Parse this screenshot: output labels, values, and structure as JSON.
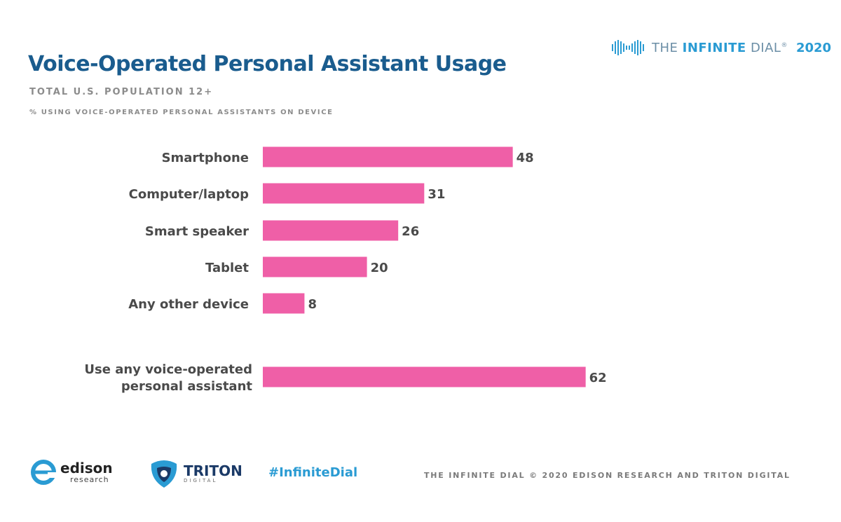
{
  "header": {
    "title": "Voice-Operated Personal Assistant Usage",
    "subtitle": "TOTAL U.S. POPULATION 12+",
    "note": "% USING VOICE-OPERATED PERSONAL ASSISTANTS ON DEVICE"
  },
  "brand": {
    "prefix": "THE ",
    "highlight": "INFINITE",
    "suffix": " DIAL",
    "reg": "®",
    "year": "2020"
  },
  "footer": {
    "edison_name": "edison",
    "edison_sub": "research",
    "triton_name": "TRITON",
    "triton_sub": "DIGITAL",
    "hashtag": "#InfiniteDial",
    "credit": "THE INFINITE DIAL   © 2020 EDISON RESEARCH AND TRITON DIGITAL"
  },
  "colors": {
    "bar": "#ef5fa7",
    "title": "#1a5c8e",
    "accent": "#2a9bd3"
  },
  "chart_data": {
    "type": "bar",
    "orientation": "horizontal",
    "categories": [
      [
        "Smartphone"
      ],
      [
        "Computer/laptop"
      ],
      [
        "Smart speaker"
      ],
      [
        "Tablet"
      ],
      [
        "Any other device"
      ],
      [
        "Use any voice-operated",
        "personal assistant"
      ]
    ],
    "values": [
      48,
      31,
      26,
      20,
      8,
      62
    ],
    "title": "Voice-Operated Personal Assistant Usage",
    "xlabel": "",
    "ylabel": "",
    "xlim": [
      0,
      100
    ],
    "grid": false,
    "legend": "none"
  }
}
